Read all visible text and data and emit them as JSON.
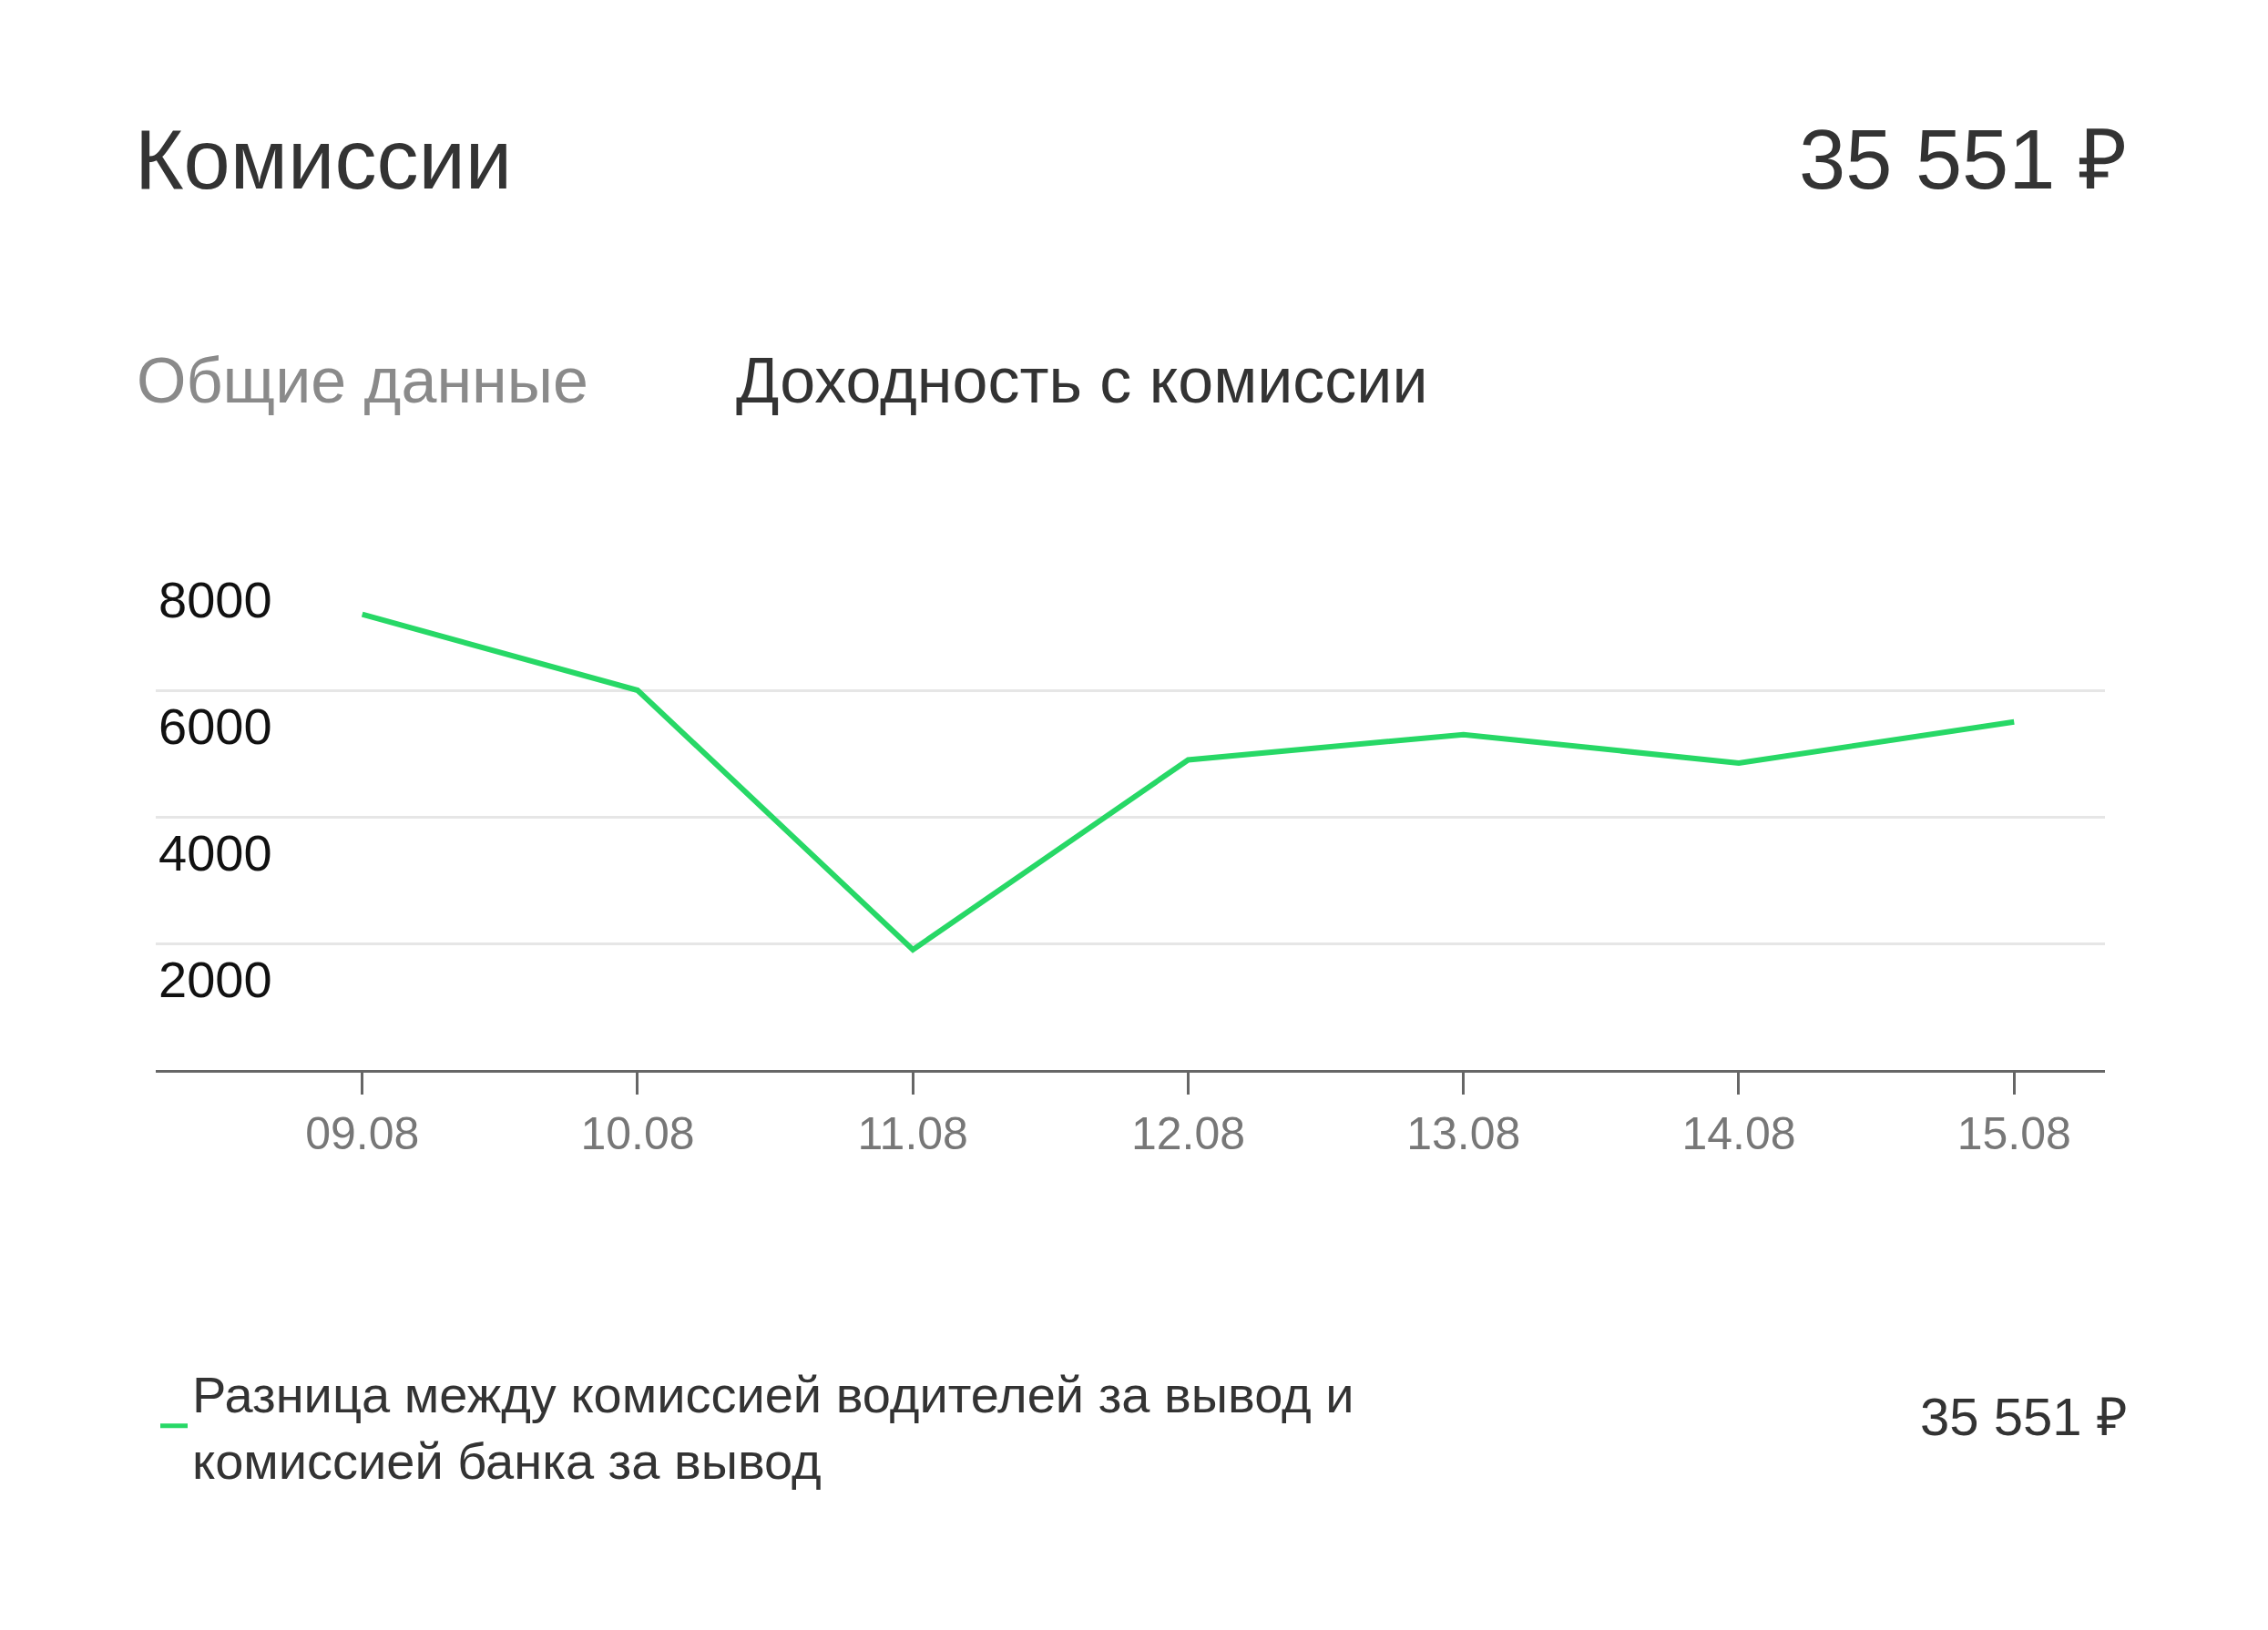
{
  "chart_data": {
    "type": "line",
    "title": "Комиссии",
    "subtitle": "Доходность с комиссии",
    "annotations": [
      "35 551 ₽",
      "Общие данные",
      "35 551 ₽"
    ],
    "categories": [
      "09.08",
      "10.08",
      "11.08",
      "12.08",
      "13.08",
      "14.08",
      "15.08"
    ],
    "series": [
      {
        "name": "Разница между комиссией водителей за вывод и комиссией банка за вывод",
        "color": "#27d866",
        "values": [
          7200,
          6000,
          1900,
          4900,
          5300,
          4850,
          5500
        ]
      }
    ],
    "ylim": [
      0,
      8000
    ],
    "yticks": [
      2000,
      4000,
      6000,
      8000
    ],
    "grid": "y",
    "legend": "bottom",
    "marker": "none",
    "line_style": "solid"
  }
}
